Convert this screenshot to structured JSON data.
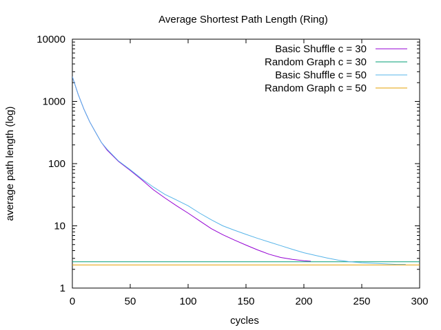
{
  "chart_data": {
    "type": "line",
    "title": "Average Shortest Path Length (Ring)",
    "xlabel": "cycles",
    "ylabel": "average path length (log)",
    "xlim": [
      0,
      300
    ],
    "ylim": [
      1,
      10000
    ],
    "yscale": "log",
    "grid": false,
    "legend_position": "top-right",
    "xticks": [
      0,
      50,
      100,
      150,
      200,
      250,
      300
    ],
    "xtick_labels": [
      "0",
      "50",
      "100",
      "150",
      "200",
      "250",
      "300"
    ],
    "yticks": [
      1,
      10,
      100,
      1000,
      10000
    ],
    "ytick_labels": [
      "1",
      "10",
      "100",
      "1000",
      "10000"
    ],
    "series": [
      {
        "name": "Basic Shuffle c = 30",
        "color": "#9400d3",
        "kind": "curve",
        "x": [
          0,
          5,
          10,
          15,
          20,
          25,
          30,
          40,
          50,
          60,
          70,
          80,
          90,
          100,
          110,
          120,
          130,
          140,
          150,
          160,
          170,
          180,
          190,
          200,
          206
        ],
        "y": [
          2500,
          1300,
          750,
          470,
          320,
          220,
          165,
          108,
          78,
          55,
          38,
          28,
          21,
          16,
          12,
          9.0,
          7.2,
          5.9,
          4.9,
          4.1,
          3.5,
          3.1,
          2.9,
          2.75,
          2.7
        ]
      },
      {
        "name": "Random Graph c = 30",
        "color": "#009e73",
        "kind": "constant",
        "x": [
          0,
          300
        ],
        "y": [
          2.65,
          2.65
        ]
      },
      {
        "name": "Basic Shuffle c = 50",
        "color": "#56b4e9",
        "kind": "curve",
        "x": [
          0,
          5,
          10,
          15,
          20,
          25,
          30,
          40,
          50,
          60,
          70,
          80,
          90,
          100,
          110,
          120,
          130,
          140,
          150,
          160,
          170,
          180,
          190,
          200,
          210,
          220,
          230,
          240,
          250,
          260,
          270,
          280,
          288
        ],
        "y": [
          2500,
          1300,
          750,
          470,
          320,
          220,
          170,
          110,
          80,
          57,
          42,
          32,
          26,
          21,
          16,
          12.5,
          10,
          8.5,
          7.3,
          6.3,
          5.5,
          4.8,
          4.2,
          3.7,
          3.35,
          3.05,
          2.8,
          2.65,
          2.55,
          2.5,
          2.45,
          2.4,
          2.4
        ]
      },
      {
        "name": "Random Graph c = 50",
        "color": "#e69f00",
        "kind": "constant",
        "x": [
          0,
          300
        ],
        "y": [
          2.35,
          2.35
        ]
      }
    ]
  }
}
